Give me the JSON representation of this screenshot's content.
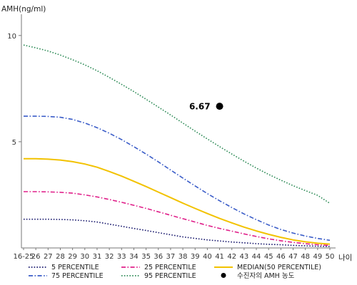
{
  "chart_data": {
    "type": "line",
    "title": "",
    "ylabel": "AMH(ng/ml)",
    "xlabel": "나이",
    "ylim": [
      0,
      11
    ],
    "yticks": [
      5,
      10
    ],
    "categories": [
      "16-25",
      "26",
      "27",
      "28",
      "29",
      "30",
      "31",
      "32",
      "33",
      "34",
      "35",
      "36",
      "37",
      "38",
      "39",
      "40",
      "41",
      "42",
      "43",
      "44",
      "45",
      "46",
      "47",
      "48",
      "49",
      "50"
    ],
    "series": [
      {
        "name": "5 PERCENTILE",
        "color": "#1a1a6e",
        "style": "dotted",
        "values": [
          1.35,
          1.35,
          1.35,
          1.34,
          1.32,
          1.28,
          1.22,
          1.12,
          1.02,
          0.92,
          0.82,
          0.72,
          0.62,
          0.52,
          0.45,
          0.38,
          0.33,
          0.28,
          0.24,
          0.2,
          0.17,
          0.15,
          0.12,
          0.1,
          0.08,
          0.07
        ]
      },
      {
        "name": "25 PERCENTILE",
        "color": "#e0208a",
        "style": "dashdot",
        "values": [
          2.65,
          2.65,
          2.64,
          2.62,
          2.58,
          2.5,
          2.4,
          2.28,
          2.15,
          2.01,
          1.86,
          1.7,
          1.54,
          1.38,
          1.22,
          1.06,
          0.92,
          0.79,
          0.66,
          0.54,
          0.43,
          0.34,
          0.26,
          0.2,
          0.15,
          0.12
        ]
      },
      {
        "name": "MEDIAN(50 PERCENTILE)",
        "color": "#f2c200",
        "style": "solid",
        "values": [
          4.2,
          4.2,
          4.18,
          4.14,
          4.06,
          3.95,
          3.8,
          3.6,
          3.38,
          3.14,
          2.89,
          2.63,
          2.37,
          2.11,
          1.86,
          1.62,
          1.39,
          1.18,
          0.98,
          0.8,
          0.64,
          0.5,
          0.38,
          0.29,
          0.22,
          0.18
        ]
      },
      {
        "name": "75 PERCENTILE",
        "color": "#3a5cc8",
        "style": "dashdot",
        "values": [
          6.2,
          6.2,
          6.19,
          6.15,
          6.05,
          5.88,
          5.66,
          5.4,
          5.1,
          4.77,
          4.42,
          4.05,
          3.67,
          3.29,
          2.92,
          2.56,
          2.22,
          1.9,
          1.6,
          1.33,
          1.08,
          0.87,
          0.7,
          0.56,
          0.45,
          0.36
        ]
      },
      {
        "name": "95 PERCENTILE",
        "color": "#2e8b57",
        "style": "dotted",
        "values": [
          9.55,
          9.42,
          9.27,
          9.08,
          8.86,
          8.62,
          8.34,
          8.03,
          7.7,
          7.36,
          7.0,
          6.63,
          6.26,
          5.88,
          5.5,
          5.13,
          4.77,
          4.42,
          4.08,
          3.76,
          3.46,
          3.19,
          2.93,
          2.7,
          2.48,
          2.1
        ]
      }
    ],
    "annotation": {
      "label": "6.67",
      "x": "41",
      "y": 6.67
    },
    "legend_extra": {
      "label": "수진자의 AMH 농도"
    },
    "legend_position": "bottom",
    "grid": false
  }
}
